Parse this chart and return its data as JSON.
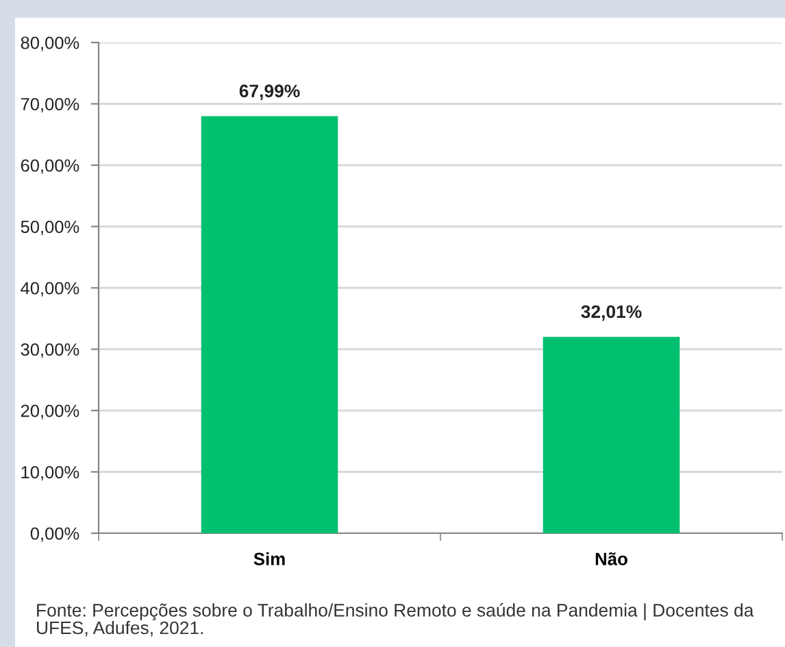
{
  "chart_data": {
    "type": "bar",
    "categories": [
      "Sim",
      "Não"
    ],
    "values": [
      67.99,
      32.01
    ],
    "color": "#00bf6f",
    "ylim": [
      0,
      80
    ],
    "yticks": [
      {
        "value": 0,
        "label": "0,00%"
      },
      {
        "value": 10,
        "label": "10,00%"
      },
      {
        "value": 20,
        "label": "20,00%"
      },
      {
        "value": 30,
        "label": "30,00%"
      },
      {
        "value": 40,
        "label": "40,00%"
      },
      {
        "value": 50,
        "label": "50,00%"
      },
      {
        "value": 60,
        "label": "60,00%"
      },
      {
        "value": 70,
        "label": "70,00%"
      },
      {
        "value": 80,
        "label": "80,00%"
      }
    ],
    "grid": "y",
    "value_labels": [
      "67,99%",
      "32,01%"
    ],
    "annotations": [
      "Fonte: Percepções sobre o Trabalho/Ensino Remoto e saúde na Pandemia | Docentes da UFES, Adufes, 2021."
    ]
  }
}
